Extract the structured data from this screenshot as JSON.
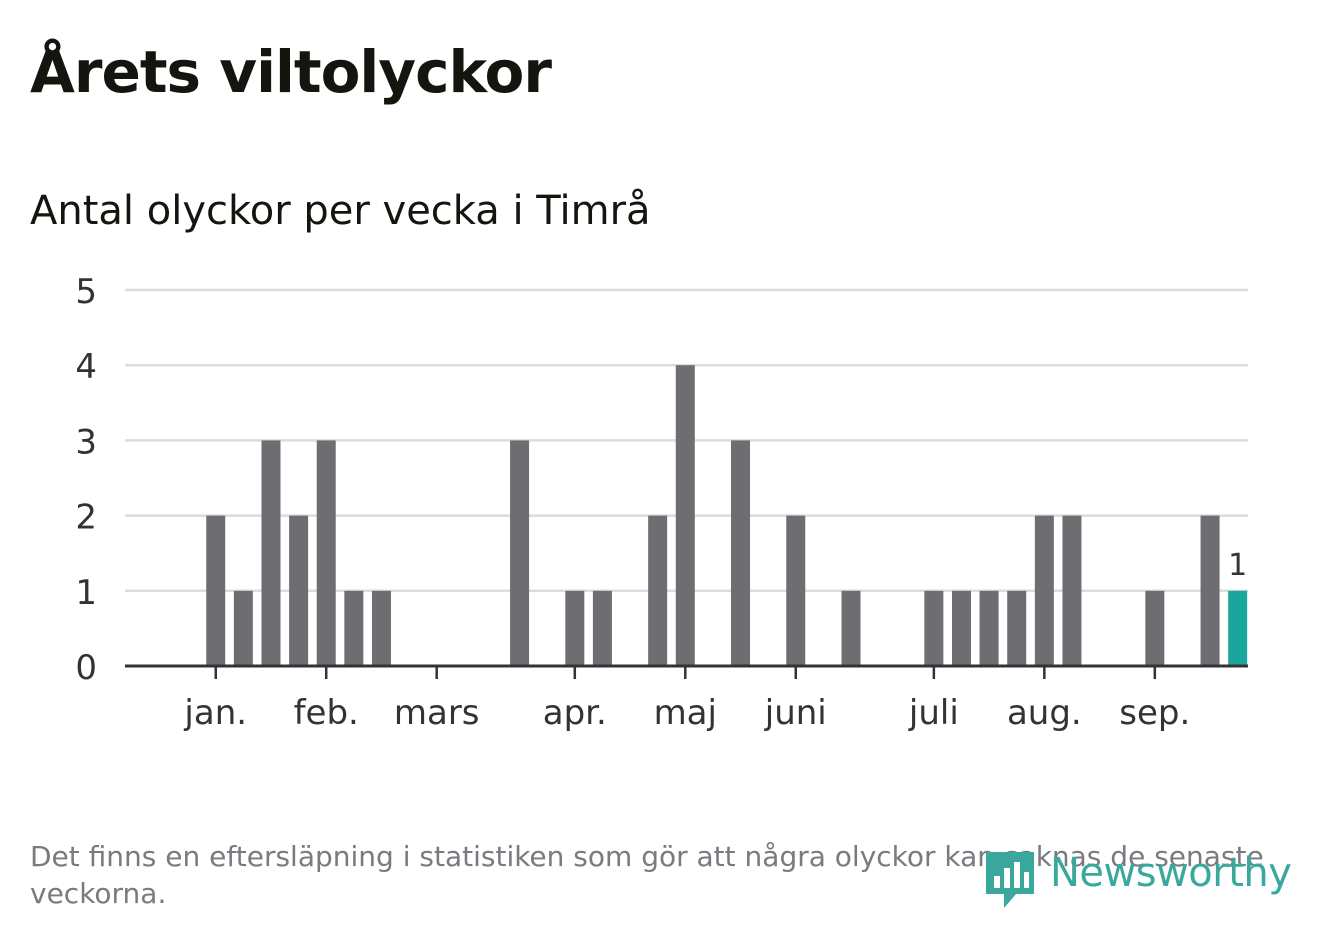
{
  "header": {
    "title": "Årets viltolyckor",
    "subtitle": "Antal olyckor per vecka i Timrå"
  },
  "footer": {
    "note": "Det finns en eftersläpning i statistiken som gör att några olyckor kan saknas de senaste veckorna.",
    "logo_text": "Newsworthy",
    "logo_icon": "bar-chart-bubble-icon"
  },
  "colors": {
    "bar": "#6d6d72",
    "highlight": "#1aa69b",
    "grid": "#dcdcdc",
    "axis": "#333333",
    "text": "#15150f",
    "brand": "#3aa89c"
  },
  "chart_data": {
    "type": "bar",
    "title": "Antal olyckor per vecka i Timrå",
    "xlabel": "",
    "ylabel": "",
    "ylim": [
      0,
      5
    ],
    "yticks": [
      0,
      1,
      2,
      3,
      4,
      5
    ],
    "grid": true,
    "x_unit": "week",
    "weeks": [
      1,
      2,
      3,
      4,
      5,
      6,
      7,
      8,
      9,
      10,
      11,
      12,
      13,
      14,
      15,
      16,
      17,
      18,
      19,
      20,
      21,
      22,
      23,
      24,
      25,
      26,
      27,
      28,
      29,
      30,
      31,
      32,
      33,
      34,
      35,
      36,
      37,
      38,
      39,
      40
    ],
    "values": [
      0,
      0,
      2,
      1,
      3,
      2,
      3,
      1,
      1,
      0,
      0,
      0,
      0,
      3,
      0,
      1,
      1,
      0,
      2,
      4,
      0,
      3,
      0,
      2,
      0,
      1,
      0,
      0,
      1,
      1,
      1,
      1,
      2,
      2,
      0,
      0,
      1,
      0,
      2,
      1
    ],
    "highlight_week": 40,
    "highlight_label": "1",
    "month_labels": [
      "jan.",
      "feb.",
      "mars",
      "apr.",
      "maj",
      "juni",
      "juli",
      "aug.",
      "sep."
    ],
    "month_ticks": [
      3,
      7,
      11,
      16,
      20,
      24,
      29,
      33,
      37
    ]
  }
}
